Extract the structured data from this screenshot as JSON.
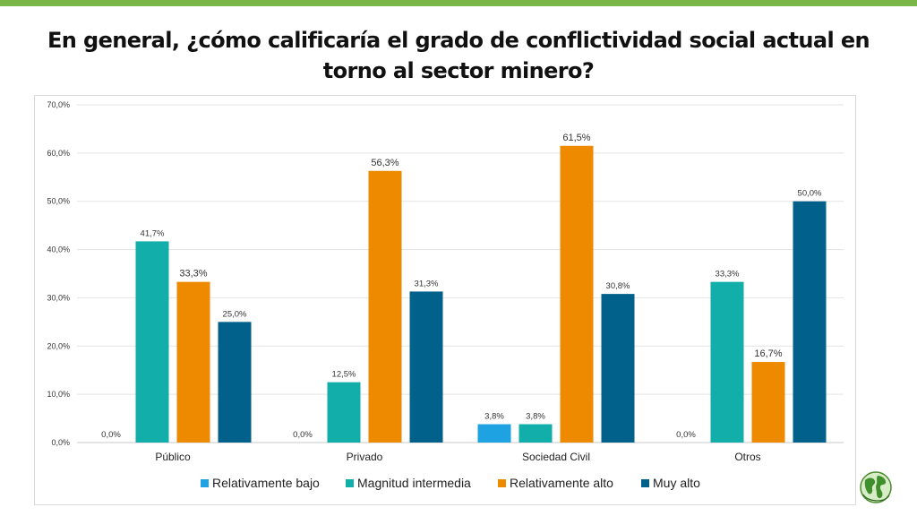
{
  "title": "En general, ¿cómo calificaría el grado de conflictividad social actual en torno al sector minero?",
  "chart_data": {
    "type": "bar",
    "title": "",
    "xlabel": "",
    "ylabel": "",
    "ylim": [
      0,
      70
    ],
    "yticks": [
      "0,0%",
      "10,0%",
      "20,0%",
      "30,0%",
      "40,0%",
      "50,0%",
      "60,0%",
      "70,0%"
    ],
    "grid": true,
    "legend_position": "bottom",
    "categories": [
      "Público",
      "Privado",
      "Sociedad Civil",
      "Otros"
    ],
    "series": [
      {
        "name": "Relativamente bajo",
        "color": "#1ea2e2",
        "values": [
          0.0,
          0.0,
          3.8,
          0.0
        ],
        "labels": [
          "0,0%",
          "0,0%",
          "3,8%",
          "0,0%"
        ]
      },
      {
        "name": "Magnitud intermedia",
        "color": "#12aeaa",
        "values": [
          41.7,
          12.5,
          3.8,
          33.3
        ],
        "labels": [
          "41,7%",
          "12,5%",
          "3,8%",
          "33,3%"
        ]
      },
      {
        "name": "Relativamente alto",
        "color": "#ee8a00",
        "values": [
          33.3,
          56.3,
          61.5,
          16.7
        ],
        "labels": [
          "33,3%",
          "56,3%",
          "61,5%",
          "16,7%"
        ]
      },
      {
        "name": "Muy alto",
        "color": "#02618a",
        "values": [
          25.0,
          31.3,
          30.8,
          50.0
        ],
        "labels": [
          "25,0%",
          "31,3%",
          "30,8%",
          "50,0%"
        ]
      }
    ]
  }
}
